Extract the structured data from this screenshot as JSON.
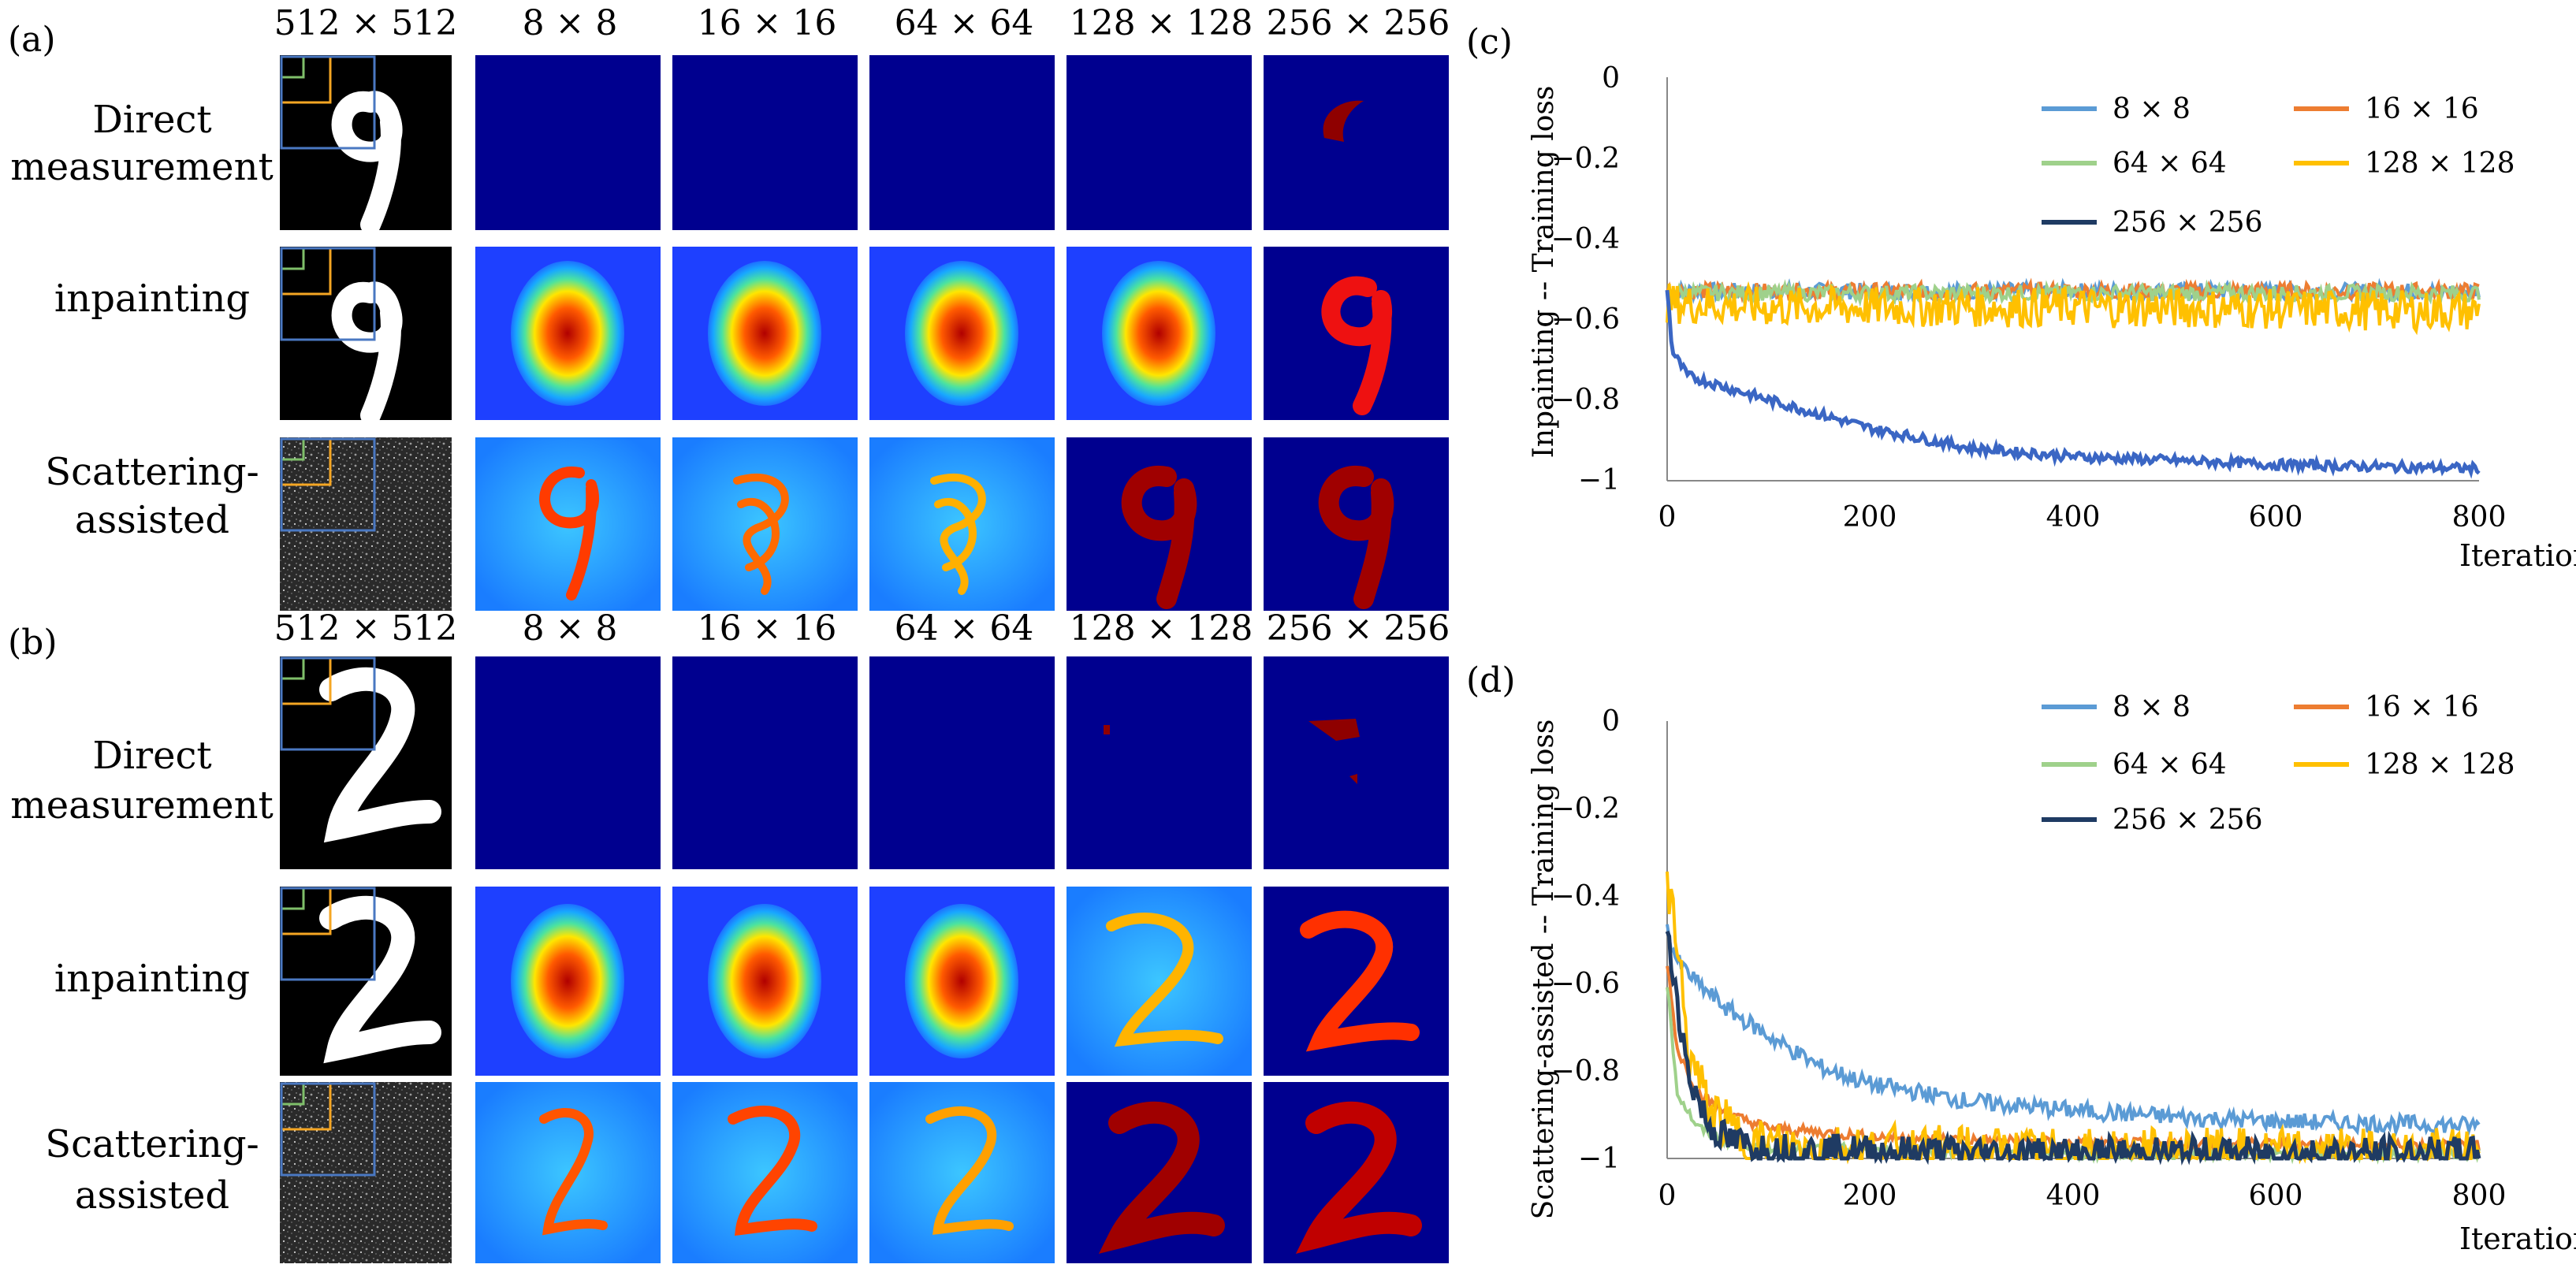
{
  "panels": {
    "a": {
      "label": "(a)",
      "col_headers": [
        "512 × 512",
        "8 × 8",
        "16 × 16",
        "64 × 64",
        "128 × 128",
        "256 × 256"
      ],
      "row_labels": [
        [
          "Direct",
          "measurement"
        ],
        [
          "inpainting"
        ],
        [
          "Scattering-",
          "assisted"
        ]
      ],
      "digit": "9"
    },
    "b": {
      "label": "(b)",
      "col_headers": [
        "512 × 512",
        "8 × 8",
        "16 × 16",
        "64 × 64",
        "128 × 128",
        "256 × 256"
      ],
      "row_labels": [
        [
          "Direct",
          "measurement"
        ],
        [
          "inpainting"
        ],
        [
          "Scattering-",
          "assisted"
        ]
      ],
      "digit": "2"
    }
  },
  "colors": {
    "jet_dark": "#00008f",
    "jet_mid": "#1e6fff",
    "jet_red": "#a00000",
    "inset_green": "#7fbf6a",
    "inset_orange": "#f5a623",
    "inset_blue": "#4a78c2",
    "series_8": "#5b9bd5",
    "series_16": "#ed7d31",
    "series_64": "#9fd18b",
    "series_128": "#ffc000",
    "series_256": "#1f3b63"
  },
  "chart_data": [
    {
      "panel_label": "(c)",
      "type": "line",
      "title": "",
      "ylabel": "Inpainting -- Training  loss",
      "xlabel": "Iteration",
      "xlim": [
        0,
        800
      ],
      "ylim": [
        -1,
        0
      ],
      "xticks": [
        "0",
        "200",
        "400",
        "600",
        "800"
      ],
      "yticks": [
        "0",
        "−0.2",
        "−0.4",
        "−0.6",
        "−0.8",
        "−1"
      ],
      "legend": [
        "8 × 8",
        "16 × 16",
        "64 × 64",
        "128 × 128",
        "256 × 256"
      ],
      "series": [
        {
          "name": "8 × 8",
          "color": "#5b9bd5",
          "noise": 0.02,
          "x": [
            0,
            800
          ],
          "y": [
            -0.53,
            -0.53
          ]
        },
        {
          "name": "16 × 16",
          "color": "#ed7d31",
          "noise": 0.02,
          "x": [
            0,
            800
          ],
          "y": [
            -0.53,
            -0.53
          ]
        },
        {
          "name": "64 × 64",
          "color": "#9fd18b",
          "noise": 0.02,
          "x": [
            0,
            800
          ],
          "y": [
            -0.535,
            -0.535
          ]
        },
        {
          "name": "128 × 128",
          "color": "#ffc000",
          "noise": 0.05,
          "x": [
            0,
            100,
            400,
            800
          ],
          "y": [
            -0.56,
            -0.57,
            -0.57,
            -0.58
          ]
        },
        {
          "name": "256 × 256",
          "color": "#3a66c4",
          "noise": 0.012,
          "x": [
            0,
            5,
            20,
            100,
            200,
            300,
            400,
            500,
            600,
            700,
            800
          ],
          "y": [
            -0.52,
            -0.68,
            -0.74,
            -0.8,
            -0.87,
            -0.92,
            -0.94,
            -0.95,
            -0.96,
            -0.965,
            -0.97
          ]
        }
      ]
    },
    {
      "panel_label": "(d)",
      "type": "line",
      "title": "",
      "ylabel": "Scattering-assisted -- Training  loss",
      "xlabel": "Iteration",
      "xlim": [
        0,
        800
      ],
      "ylim": [
        -1,
        0
      ],
      "xticks": [
        "0",
        "200",
        "400",
        "600",
        "800"
      ],
      "yticks": [
        "0",
        "−0.2",
        "−0.4",
        "−0.6",
        "−0.8",
        "−1"
      ],
      "legend": [
        "8 × 8",
        "16 × 16",
        "64 × 64",
        "128 × 128",
        "256 × 256"
      ],
      "series": [
        {
          "name": "8 × 8",
          "color": "#5b9bd5",
          "noise": 0.02,
          "x": [
            0,
            10,
            30,
            60,
            100,
            150,
            200,
            300,
            400,
            500,
            600,
            800
          ],
          "y": [
            -0.48,
            -0.55,
            -0.6,
            -0.66,
            -0.72,
            -0.79,
            -0.83,
            -0.87,
            -0.89,
            -0.905,
            -0.915,
            -0.925
          ]
        },
        {
          "name": "16 × 16",
          "color": "#ed7d31",
          "noise": 0.012,
          "x": [
            0,
            10,
            30,
            60,
            100,
            200,
            400,
            800
          ],
          "y": [
            -0.55,
            -0.75,
            -0.85,
            -0.9,
            -0.93,
            -0.95,
            -0.965,
            -0.97
          ]
        },
        {
          "name": "64 × 64",
          "color": "#9fd18b",
          "noise": 0.012,
          "x": [
            0,
            10,
            30,
            60,
            100,
            200,
            400,
            800
          ],
          "y": [
            -0.6,
            -0.85,
            -0.93,
            -0.96,
            -0.975,
            -0.98,
            -0.99,
            -0.99
          ]
        },
        {
          "name": "128 × 128",
          "color": "#ffc000",
          "noise": 0.06,
          "x": [
            0,
            8,
            20,
            40,
            60,
            80,
            100,
            200,
            400,
            800
          ],
          "y": [
            -0.4,
            -0.45,
            -0.75,
            -0.88,
            -0.93,
            -0.96,
            -0.97,
            -0.98,
            -0.99,
            -0.99
          ]
        },
        {
          "name": "256 × 256",
          "color": "#1f3b63",
          "noise": 0.04,
          "x": [
            0,
            8,
            20,
            40,
            60,
            80,
            100,
            200,
            400,
            800
          ],
          "y": [
            -0.5,
            -0.6,
            -0.8,
            -0.92,
            -0.96,
            -0.97,
            -0.98,
            -0.985,
            -0.99,
            -0.99
          ]
        }
      ]
    }
  ]
}
